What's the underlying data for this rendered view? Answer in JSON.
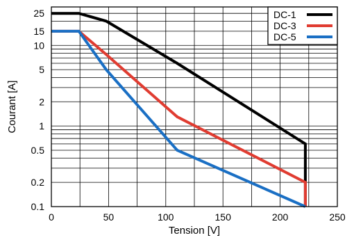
{
  "chart_data": {
    "type": "line",
    "xlabel": "Tension [V]",
    "ylabel": "Courant [A]",
    "xlim": [
      0,
      250
    ],
    "ylim": [
      0.1,
      30
    ],
    "yscale": "log",
    "grid": true,
    "x_ticks": [
      "0",
      "50",
      "100",
      "150",
      "200",
      "250"
    ],
    "y_ticks": [
      "0.1",
      "0.2",
      "0.5",
      "1",
      "2",
      "5",
      "10",
      "15",
      "25"
    ],
    "legend_position": "top-right",
    "series": [
      {
        "name": "DC-1",
        "color": "#000000",
        "x": [
          0,
          24,
          48,
          110,
          222,
          222
        ],
        "y": [
          25,
          25,
          20,
          6,
          0.6,
          0.1
        ]
      },
      {
        "name": "DC-3",
        "color": "#e03c31",
        "x": [
          0,
          24,
          48,
          110,
          222,
          222
        ],
        "y": [
          15,
          15,
          7.7,
          1.3,
          0.2,
          0.1
        ]
      },
      {
        "name": "DC-5",
        "color": "#1a6fc4",
        "x": [
          0,
          24,
          48,
          110,
          222
        ],
        "y": [
          15,
          15,
          5,
          0.5,
          0.1
        ]
      }
    ]
  }
}
